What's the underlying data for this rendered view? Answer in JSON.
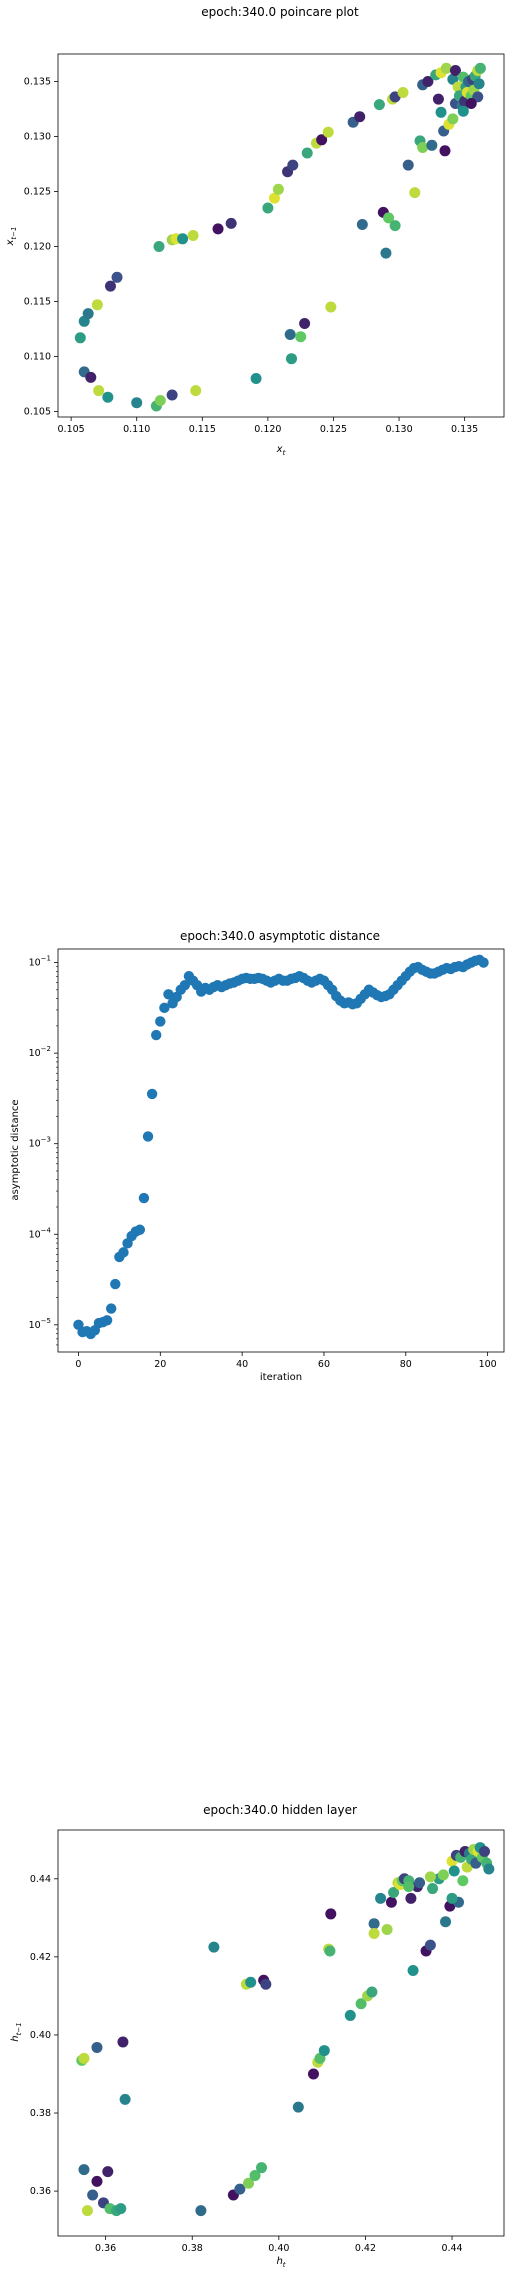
{
  "charts": [
    {
      "type": "scatter",
      "title": "epoch:340.0 poincare plot",
      "xlabel": "x_t",
      "xlabel_main": "x",
      "xlabel_sub": "t",
      "ylabel": "x_{t-1}",
      "ylabel_main": "x",
      "ylabel_sub": "t−1",
      "xlim": [
        0.104,
        0.138
      ],
      "ylim": [
        0.1045,
        0.1375
      ],
      "yscale": "linear",
      "xticks": [
        0.105,
        0.11,
        0.115,
        0.12,
        0.125,
        0.13,
        0.135
      ],
      "yticks": [
        0.105,
        0.11,
        0.115,
        0.12,
        0.125,
        0.13,
        0.135
      ],
      "xtick_labels": [
        "0.105",
        "0.110",
        "0.115",
        "0.120",
        "0.125",
        "0.130",
        "0.135"
      ],
      "ytick_labels": [
        "0.105",
        "0.110",
        "0.115",
        "0.120",
        "0.125",
        "0.130",
        "0.135"
      ],
      "colormap": "viridis",
      "points": [
        [
          0.1057,
          0.1117,
          0.55
        ],
        [
          0.106,
          0.1132,
          0.45
        ],
        [
          0.1063,
          0.1139,
          0.4
        ],
        [
          0.107,
          0.1147,
          0.9
        ],
        [
          0.106,
          0.1086,
          0.35
        ],
        [
          0.1065,
          0.1081,
          0.1
        ],
        [
          0.1071,
          0.1069,
          0.9
        ],
        [
          0.1078,
          0.1063,
          0.5
        ],
        [
          0.108,
          0.1164,
          0.15
        ],
        [
          0.1085,
          0.1172,
          0.25
        ],
        [
          0.11,
          0.1058,
          0.45
        ],
        [
          0.1115,
          0.1055,
          0.65
        ],
        [
          0.1118,
          0.106,
          0.8
        ],
        [
          0.1127,
          0.1065,
          0.2
        ],
        [
          0.1145,
          0.1069,
          0.9
        ],
        [
          0.1117,
          0.12,
          0.6
        ],
        [
          0.1127,
          0.1206,
          0.85
        ],
        [
          0.113,
          0.1207,
          0.95
        ],
        [
          0.1135,
          0.1207,
          0.5
        ],
        [
          0.1143,
          0.121,
          0.9
        ],
        [
          0.1162,
          0.1216,
          0.05
        ],
        [
          0.1172,
          0.1221,
          0.15
        ],
        [
          0.1191,
          0.108,
          0.5
        ],
        [
          0.12,
          0.1235,
          0.6
        ],
        [
          0.1205,
          0.1244,
          0.95
        ],
        [
          0.1208,
          0.1252,
          0.85
        ],
        [
          0.1215,
          0.1268,
          0.15
        ],
        [
          0.1219,
          0.1274,
          0.2
        ],
        [
          0.1217,
          0.112,
          0.35
        ],
        [
          0.1218,
          0.1098,
          0.55
        ],
        [
          0.1225,
          0.1118,
          0.75
        ],
        [
          0.1228,
          0.113,
          0.1
        ],
        [
          0.123,
          0.1285,
          0.6
        ],
        [
          0.1237,
          0.1294,
          0.9
        ],
        [
          0.1241,
          0.1297,
          0.05
        ],
        [
          0.1246,
          0.1304,
          0.9
        ],
        [
          0.1248,
          0.1145,
          0.9
        ],
        [
          0.1265,
          0.1313,
          0.3
        ],
        [
          0.127,
          0.1318,
          0.1
        ],
        [
          0.1272,
          0.122,
          0.35
        ],
        [
          0.1285,
          0.1329,
          0.6
        ],
        [
          0.1288,
          0.1231,
          0.05
        ],
        [
          0.129,
          0.1194,
          0.4
        ],
        [
          0.1292,
          0.1226,
          0.75
        ],
        [
          0.1295,
          0.1334,
          0.9
        ],
        [
          0.1297,
          0.1336,
          0.2
        ],
        [
          0.1297,
          0.1219,
          0.65
        ],
        [
          0.1303,
          0.134,
          0.9
        ],
        [
          0.1307,
          0.1274,
          0.3
        ],
        [
          0.1312,
          0.1249,
          0.9
        ],
        [
          0.1316,
          0.1296,
          0.6
        ],
        [
          0.1318,
          0.129,
          0.8
        ],
        [
          0.1318,
          0.1347,
          0.3
        ],
        [
          0.1322,
          0.135,
          0.1
        ],
        [
          0.1325,
          0.1292,
          0.35
        ],
        [
          0.1328,
          0.1356,
          0.6
        ],
        [
          0.133,
          0.1334,
          0.1
        ],
        [
          0.1332,
          0.1358,
          0.95
        ],
        [
          0.1332,
          0.1322,
          0.5
        ],
        [
          0.1334,
          0.1305,
          0.3
        ],
        [
          0.1335,
          0.1287,
          0.05
        ],
        [
          0.1336,
          0.1362,
          0.85
        ],
        [
          0.1338,
          0.1311,
          0.95
        ],
        [
          0.1341,
          0.1352,
          0.45
        ],
        [
          0.1343,
          0.133,
          0.25
        ],
        [
          0.1343,
          0.136,
          0.1
        ],
        [
          0.1345,
          0.1345,
          0.9
        ],
        [
          0.1346,
          0.1337,
          0.6
        ],
        [
          0.1348,
          0.1328,
          0.4
        ],
        [
          0.1349,
          0.1354,
          0.7
        ],
        [
          0.135,
          0.1332,
          0.15
        ],
        [
          0.1351,
          0.1345,
          0.55
        ],
        [
          0.1352,
          0.134,
          0.95
        ],
        [
          0.1353,
          0.135,
          0.35
        ],
        [
          0.1355,
          0.1337,
          0.75
        ],
        [
          0.1356,
          0.1352,
          0.2
        ],
        [
          0.1357,
          0.1342,
          0.85
        ],
        [
          0.1358,
          0.1355,
          0.6
        ],
        [
          0.136,
          0.136,
          0.9
        ],
        [
          0.1361,
          0.1348,
          0.45
        ],
        [
          0.1362,
          0.1362,
          0.65
        ],
        [
          0.136,
          0.1336,
          0.25
        ],
        [
          0.1355,
          0.133,
          0.05
        ],
        [
          0.1349,
          0.1323,
          0.5
        ],
        [
          0.1341,
          0.1316,
          0.8
        ]
      ]
    },
    {
      "type": "scatter",
      "title": "epoch:340.0 asymptotic distance",
      "xlabel": "iteration",
      "ylabel": "asymptotic distance",
      "xlim": [
        -5,
        104
      ],
      "ylim_log10": [
        -5.3,
        -0.85
      ],
      "yscale": "log",
      "xticks": [
        0,
        20,
        40,
        60,
        80,
        100
      ],
      "xtick_labels": [
        "0",
        "20",
        "40",
        "60",
        "80",
        "100"
      ],
      "yticks_log10": [
        -5,
        -4,
        -3,
        -2,
        -1
      ],
      "ytick_base": "10",
      "ytick_exponents": [
        "−5",
        "−4",
        "−3",
        "−2",
        "−1"
      ],
      "color": "#1f77b4",
      "log10_values": [
        -5.0,
        -5.08,
        -5.07,
        -5.1,
        -5.06,
        -4.98,
        -4.97,
        -4.95,
        -4.82,
        -4.55,
        -4.25,
        -4.2,
        -4.1,
        -4.02,
        -3.97,
        -3.95,
        -3.6,
        -2.92,
        -2.45,
        -1.8,
        -1.65,
        -1.5,
        -1.35,
        -1.45,
        -1.38,
        -1.3,
        -1.25,
        -1.15,
        -1.2,
        -1.25,
        -1.32,
        -1.28,
        -1.3,
        -1.27,
        -1.25,
        -1.27,
        -1.25,
        -1.23,
        -1.22,
        -1.2,
        -1.18,
        -1.17,
        -1.18,
        -1.18,
        -1.17,
        -1.18,
        -1.2,
        -1.22,
        -1.2,
        -1.18,
        -1.2,
        -1.2,
        -1.18,
        -1.17,
        -1.15,
        -1.17,
        -1.2,
        -1.22,
        -1.2,
        -1.18,
        -1.2,
        -1.25,
        -1.3,
        -1.37,
        -1.42,
        -1.45,
        -1.44,
        -1.46,
        -1.45,
        -1.4,
        -1.35,
        -1.3,
        -1.33,
        -1.36,
        -1.38,
        -1.37,
        -1.35,
        -1.3,
        -1.25,
        -1.2,
        -1.15,
        -1.1,
        -1.06,
        -1.05,
        -1.08,
        -1.1,
        -1.12,
        -1.12,
        -1.1,
        -1.08,
        -1.06,
        -1.07,
        -1.05,
        -1.04,
        -1.05,
        -1.02,
        -1.0,
        -0.98,
        -0.97,
        -1.0
      ]
    },
    {
      "type": "scatter",
      "title": "epoch:340.0 hidden layer",
      "xlabel": "h_t",
      "xlabel_main": "h",
      "xlabel_sub": "t",
      "ylabel": "h_{t-1}",
      "ylabel_main": "h",
      "ylabel_sub": "t−1",
      "xlim": [
        0.349,
        0.452
      ],
      "ylim": [
        0.3485,
        0.4525
      ],
      "yscale": "linear",
      "xticks": [
        0.36,
        0.38,
        0.4,
        0.42,
        0.44
      ],
      "yticks": [
        0.36,
        0.38,
        0.4,
        0.42,
        0.44
      ],
      "xtick_labels": [
        "0.36",
        "0.38",
        "0.40",
        "0.42",
        "0.44"
      ],
      "ytick_labels": [
        "0.36",
        "0.38",
        "0.40",
        "0.42",
        "0.44"
      ],
      "colormap": "viridis",
      "points": [
        [
          0.3545,
          0.3935,
          0.75
        ],
        [
          0.355,
          0.394,
          0.9
        ],
        [
          0.358,
          0.3968,
          0.3
        ],
        [
          0.355,
          0.3655,
          0.35
        ],
        [
          0.3558,
          0.355,
          0.9
        ],
        [
          0.357,
          0.359,
          0.3
        ],
        [
          0.358,
          0.3625,
          0.05
        ],
        [
          0.3595,
          0.357,
          0.2
        ],
        [
          0.3605,
          0.365,
          0.1
        ],
        [
          0.361,
          0.3555,
          0.7
        ],
        [
          0.3625,
          0.355,
          0.6
        ],
        [
          0.3635,
          0.3555,
          0.55
        ],
        [
          0.364,
          0.3982,
          0.1
        ],
        [
          0.3645,
          0.3835,
          0.45
        ],
        [
          0.382,
          0.355,
          0.35
        ],
        [
          0.385,
          0.4225,
          0.45
        ],
        [
          0.3895,
          0.359,
          0.05
        ],
        [
          0.391,
          0.3605,
          0.3
        ],
        [
          0.3925,
          0.413,
          0.9
        ],
        [
          0.393,
          0.362,
          0.8
        ],
        [
          0.3935,
          0.4135,
          0.5
        ],
        [
          0.3945,
          0.364,
          0.7
        ],
        [
          0.396,
          0.366,
          0.65
        ],
        [
          0.3965,
          0.414,
          0.05
        ],
        [
          0.397,
          0.413,
          0.2
        ],
        [
          0.4045,
          0.3815,
          0.4
        ],
        [
          0.408,
          0.39,
          0.05
        ],
        [
          0.409,
          0.393,
          0.9
        ],
        [
          0.4095,
          0.394,
          0.7
        ],
        [
          0.4105,
          0.396,
          0.5
        ],
        [
          0.4115,
          0.422,
          0.9
        ],
        [
          0.4118,
          0.4215,
          0.65
        ],
        [
          0.412,
          0.431,
          0.05
        ],
        [
          0.4165,
          0.405,
          0.5
        ],
        [
          0.419,
          0.408,
          0.7
        ],
        [
          0.4205,
          0.41,
          0.85
        ],
        [
          0.4215,
          0.411,
          0.6
        ],
        [
          0.422,
          0.4285,
          0.35
        ],
        [
          0.422,
          0.426,
          0.9
        ],
        [
          0.4235,
          0.435,
          0.45
        ],
        [
          0.425,
          0.427,
          0.85
        ],
        [
          0.426,
          0.434,
          0.05
        ],
        [
          0.4265,
          0.4365,
          0.6
        ],
        [
          0.4275,
          0.439,
          0.9
        ],
        [
          0.428,
          0.4385,
          0.95
        ],
        [
          0.4285,
          0.4395,
          0.75
        ],
        [
          0.429,
          0.44,
          0.2
        ],
        [
          0.43,
          0.4395,
          0.65
        ],
        [
          0.4305,
          0.435,
          0.1
        ],
        [
          0.431,
          0.4165,
          0.5
        ],
        [
          0.432,
          0.438,
          0.1
        ],
        [
          0.434,
          0.4215,
          0.05
        ],
        [
          0.435,
          0.423,
          0.25
        ],
        [
          0.4355,
          0.4375,
          0.6
        ],
        [
          0.437,
          0.44,
          0.55
        ],
        [
          0.438,
          0.441,
          0.8
        ],
        [
          0.4385,
          0.429,
          0.4
        ],
        [
          0.4395,
          0.433,
          0.05
        ],
        [
          0.44,
          0.4445,
          0.95
        ],
        [
          0.4405,
          0.442,
          0.5
        ],
        [
          0.441,
          0.446,
          0.2
        ],
        [
          0.4415,
          0.434,
          0.35
        ],
        [
          0.442,
          0.4455,
          0.65
        ],
        [
          0.4425,
          0.4395,
          0.75
        ],
        [
          0.443,
          0.447,
          0.1
        ],
        [
          0.4435,
          0.443,
          0.9
        ],
        [
          0.444,
          0.4465,
          0.4
        ],
        [
          0.4445,
          0.445,
          0.6
        ],
        [
          0.445,
          0.4475,
          0.85
        ],
        [
          0.4455,
          0.444,
          0.3
        ],
        [
          0.446,
          0.447,
          0.95
        ],
        [
          0.4465,
          0.448,
          0.5
        ],
        [
          0.447,
          0.4455,
          0.75
        ],
        [
          0.4475,
          0.447,
          0.2
        ],
        [
          0.448,
          0.444,
          0.65
        ],
        [
          0.4485,
          0.4425,
          0.45
        ],
        [
          0.44,
          0.435,
          0.55
        ],
        [
          0.435,
          0.4405,
          0.85
        ],
        [
          0.4325,
          0.439,
          0.3
        ],
        [
          0.43,
          0.438,
          0.7
        ]
      ]
    }
  ]
}
